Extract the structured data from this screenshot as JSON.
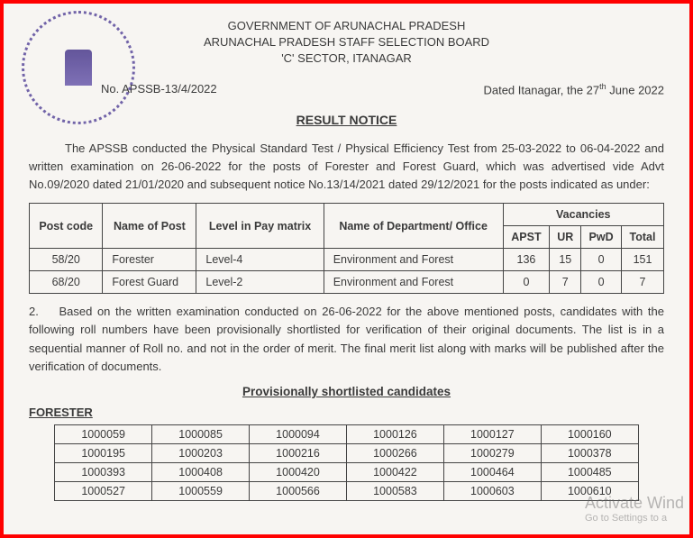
{
  "header": {
    "line1": "GOVERNMENT OF ARUNACHAL PRADESH",
    "line2": "ARUNACHAL PRADESH STAFF SELECTION BOARD",
    "line3": "'C' SECTOR, ITANAGAR"
  },
  "meta": {
    "ref_prefix": "No. ",
    "ref": "APSSB-13/4/2022",
    "date_prefix": "Dated Itanagar, the ",
    "date_day": "27",
    "date_sup": "th",
    "date_rest": " June 2022"
  },
  "title": "RESULT NOTICE",
  "para1": "The APSSB conducted the Physical Standard Test / Physical Efficiency Test from 25-03-2022 to 06-04-2022 and written examination on 26-06-2022 for the posts of Forester and Forest Guard, which was advertised vide Advt No.09/2020 dated 21/01/2020 and subsequent notice No.13/14/2021 dated 29/12/2021 for the posts indicated as under:",
  "vacancy_table": {
    "headers": {
      "post_code": "Post code",
      "name_of_post": "Name of Post",
      "level": "Level in Pay matrix",
      "dept": "Name of Department/ Office",
      "vac": "Vacancies",
      "apst": "APST",
      "ur": "UR",
      "pwd": "PwD",
      "total": "Total"
    },
    "rows": [
      {
        "code": "58/20",
        "post": "Forester",
        "level": "Level-4",
        "dept": "Environment and Forest",
        "apst": "136",
        "ur": "15",
        "pwd": "0",
        "total": "151"
      },
      {
        "code": "68/20",
        "post": "Forest Guard",
        "level": "Level-2",
        "dept": "Environment and Forest",
        "apst": "0",
        "ur": "7",
        "pwd": "0",
        "total": "7"
      }
    ]
  },
  "para2_num": "2.",
  "para2": "Based on the written examination conducted on 26-06-2022 for the above mentioned posts, candidates with the following roll numbers have been provisionally shortlisted for verification of their original documents. The list is in a sequential manner of Roll no. and not in the order of merit. The final merit list along with marks will be published after the verification of documents.",
  "subtitle": "Provisionally shortlisted candidates",
  "post_label": "FORESTER",
  "roll_rows": [
    [
      "1000059",
      "1000085",
      "1000094",
      "1000126",
      "1000127",
      "1000160"
    ],
    [
      "1000195",
      "1000203",
      "1000216",
      "1000266",
      "1000279",
      "1000378"
    ],
    [
      "1000393",
      "1000408",
      "1000420",
      "1000422",
      "1000464",
      "1000485"
    ],
    [
      "1000527",
      "1000559",
      "1000566",
      "1000583",
      "1000603",
      "1000610"
    ]
  ],
  "watermark": {
    "line1": "Activate Wind",
    "line2": "Go to Settings to a"
  }
}
